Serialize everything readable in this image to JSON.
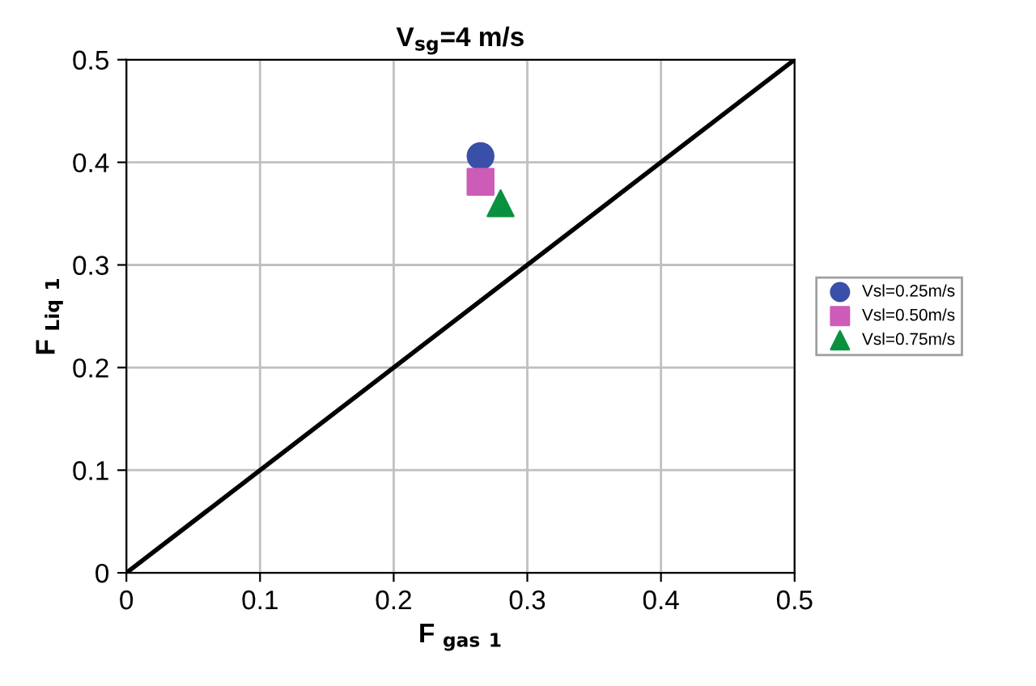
{
  "chart_data": {
    "type": "scatter",
    "title": "V$_{sg}$=4 m/s",
    "xlabel": "F $_{gas 1}$",
    "ylabel": "F $_{Liq 1}$",
    "xlim": [
      0,
      0.5
    ],
    "ylim": [
      0,
      0.5
    ],
    "xticks": [
      0,
      0.1,
      0.2,
      0.3,
      0.4,
      0.5
    ],
    "yticks": [
      0,
      0.1,
      0.2,
      0.3,
      0.4,
      0.5
    ],
    "grid": true,
    "legend": "right",
    "series": [
      {
        "name": "Vsl=0.25m/s",
        "color": "#3a4fa8",
        "marker": "circle",
        "x": [
          0.265
        ],
        "values": [
          0.406
        ]
      },
      {
        "name": "Vsl=0.50m/s",
        "color": "#cc5cb8",
        "marker": "square",
        "x": [
          0.265
        ],
        "values": [
          0.381
        ]
      },
      {
        "name": "Vsl=0.75m/s",
        "color": "#0a9140",
        "marker": "triangle",
        "x": [
          0.28
        ],
        "values": [
          0.36
        ]
      },
      {
        "type": "line",
        "color": "#000000",
        "marker": "none",
        "x": [
          0,
          0.5
        ],
        "values": [
          0,
          0.5
        ]
      }
    ]
  }
}
